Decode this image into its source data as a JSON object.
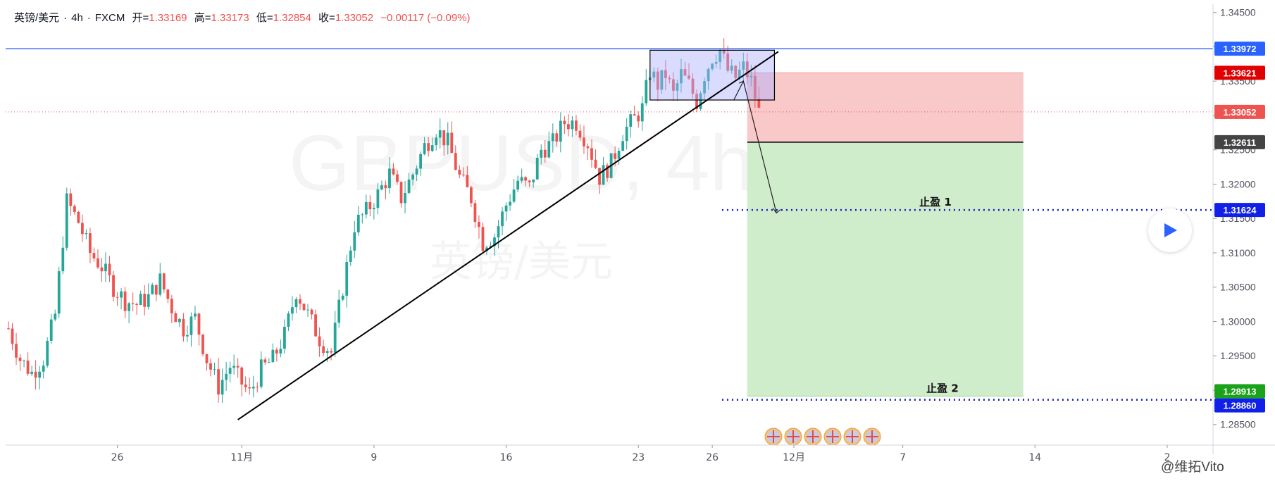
{
  "header": {
    "symbol": "英镑/美元",
    "sep1": "·",
    "interval": "4h",
    "sep2": "·",
    "source": "FXCM",
    "open_label": "开=",
    "open_value": "1.33169",
    "high_label": "高=",
    "high_value": "1.33173",
    "low_label": "低=",
    "low_value": "1.32854",
    "close_label": "收=",
    "close_value": "1.33052",
    "change": "−0.00117 (−0.09%)"
  },
  "watermark": {
    "ticker": "GBPUSD, 4h",
    "name": "英镑/美元",
    "author": "@维拓Vito"
  },
  "colors": {
    "up": "#26a69a",
    "down": "#ef5350",
    "stop_zone": "#f9c8c8",
    "target_zone": "#cfeccb",
    "resistance_line": "#2962ff",
    "consolidation_box": "#aab0ff",
    "tp_dotted": "#1020c0"
  },
  "annotations": {
    "tp1_label": "止盈 1",
    "tp2_label": "止盈 2",
    "play_icon": "play-icon"
  },
  "price_tags": [
    {
      "label": "1.33972",
      "bg": "#2962ff",
      "fg": "#ffffff"
    },
    {
      "label": "1.33621",
      "bg": "#e00000",
      "fg": "#ffffff"
    },
    {
      "label": "1.33052",
      "bg": "#ef5350",
      "fg": "#ffffff"
    },
    {
      "label": "1.32611",
      "bg": "#444444",
      "fg": "#ffffff"
    },
    {
      "label": "1.31624",
      "bg": "#1020e8",
      "fg": "#ffffff"
    },
    {
      "label": "1.28913",
      "bg": "#1aa21a",
      "fg": "#ffffff"
    },
    {
      "label": "1.28860",
      "bg": "#1020e8",
      "fg": "#ffffff"
    }
  ],
  "chart_data": {
    "type": "candlestick",
    "symbol": "GBPUSD",
    "interval": "4h",
    "y_axis_side": "right",
    "ylim": [
      1.282,
      1.3462
    ],
    "y_ticks": [
      "1.34500",
      "1.34000",
      "1.33500",
      "1.33000",
      "1.32500",
      "1.32000",
      "1.31500",
      "1.31000",
      "1.30500",
      "1.30000",
      "1.29500",
      "1.29000",
      "1.28500"
    ],
    "x_ticks": [
      {
        "label": "26",
        "bar": 28
      },
      {
        "label": "11月",
        "bar": 60
      },
      {
        "label": "9",
        "bar": 94
      },
      {
        "label": "16",
        "bar": 128
      },
      {
        "label": "23",
        "bar": 162
      },
      {
        "label": "26",
        "bar": 181
      },
      {
        "label": "12月",
        "bar": 202
      },
      {
        "label": "7",
        "bar": 230
      },
      {
        "label": "14",
        "bar": 264
      },
      {
        "label": "2",
        "bar": 298
      }
    ],
    "anchors": [
      [
        0,
        1.299
      ],
      [
        3,
        1.2945
      ],
      [
        6,
        1.2925
      ],
      [
        9,
        1.2945
      ],
      [
        12,
        1.301
      ],
      [
        15,
        1.3175
      ],
      [
        18,
        1.3145
      ],
      [
        21,
        1.31
      ],
      [
        24,
        1.308
      ],
      [
        27,
        1.305
      ],
      [
        30,
        1.303
      ],
      [
        33,
        1.3025
      ],
      [
        36,
        1.3035
      ],
      [
        39,
        1.306
      ],
      [
        42,
        1.302
      ],
      [
        45,
        1.299
      ],
      [
        48,
        1.3005
      ],
      [
        51,
        1.2945
      ],
      [
        54,
        1.2905
      ],
      [
        57,
        1.2935
      ],
      [
        60,
        1.291
      ],
      [
        62,
        1.2895
      ],
      [
        65,
        1.293
      ],
      [
        68,
        1.2945
      ],
      [
        71,
        1.298
      ],
      [
        74,
        1.3045
      ],
      [
        77,
        1.301
      ],
      [
        80,
        1.2975
      ],
      [
        83,
        1.2955
      ],
      [
        86,
        1.305
      ],
      [
        89,
        1.314
      ],
      [
        92,
        1.316
      ],
      [
        95,
        1.3185
      ],
      [
        98,
        1.3215
      ],
      [
        101,
        1.318
      ],
      [
        104,
        1.3215
      ],
      [
        107,
        1.3255
      ],
      [
        110,
        1.328
      ],
      [
        113,
        1.326
      ],
      [
        116,
        1.321
      ],
      [
        119,
        1.318
      ],
      [
        122,
        1.3115
      ],
      [
        125,
        1.3125
      ],
      [
        128,
        1.317
      ],
      [
        131,
        1.3205
      ],
      [
        134,
        1.3195
      ],
      [
        137,
        1.325
      ],
      [
        140,
        1.326
      ],
      [
        143,
        1.329
      ],
      [
        146,
        1.329
      ],
      [
        149,
        1.326
      ],
      [
        152,
        1.321
      ],
      [
        155,
        1.323
      ],
      [
        158,
        1.3275
      ],
      [
        161,
        1.3295
      ],
      [
        163,
        1.331
      ],
      [
        165,
        1.3365
      ],
      [
        167,
        1.3345
      ],
      [
        169,
        1.336
      ],
      [
        171,
        1.333
      ],
      [
        173,
        1.336
      ],
      [
        175,
        1.3345
      ],
      [
        177,
        1.332
      ],
      [
        179,
        1.336
      ],
      [
        181,
        1.3385
      ],
      [
        183,
        1.3395
      ],
      [
        185,
        1.3365
      ],
      [
        187,
        1.3355
      ],
      [
        189,
        1.337
      ],
      [
        191,
        1.335
      ],
      [
        193,
        1.3305
      ]
    ],
    "trendline": {
      "start_bar": 59,
      "start_price": 1.2857,
      "end_bar": 198,
      "end_price": 1.3393
    },
    "resistance_level": 1.33972,
    "consolidation_box": {
      "from_bar": 165,
      "to_bar": 197,
      "top": 1.3395,
      "bottom": 1.33225
    },
    "trade_setup": {
      "from_bar": 190,
      "to_bar": 261,
      "stop": 1.33621,
      "entry": 1.32611,
      "target1": 1.31624,
      "target2": 1.28913,
      "target2_alt": 1.2886
    },
    "last_close": 1.33052
  }
}
